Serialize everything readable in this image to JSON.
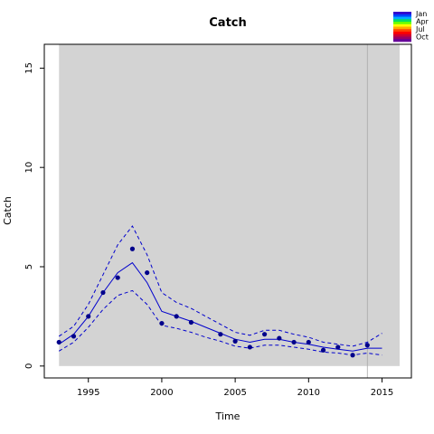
{
  "chart_data": {
    "type": "line",
    "title": "Catch",
    "xlabel": "Time",
    "ylabel": "Catch",
    "xlim": [
      1992,
      2017
    ],
    "ylim": [
      -0.6,
      16.2
    ],
    "xticks": [
      1995,
      2000,
      2005,
      2010,
      2015
    ],
    "yticks": [
      0,
      5,
      10,
      15
    ],
    "grid": false,
    "background_color": "#d3d3d3",
    "shaded_x_range": [
      1993,
      2016.2
    ],
    "vertical_line_x": 2014,
    "legend_position": "top-right",
    "legend": {
      "labels": [
        "Jan",
        "Apr",
        "Jul",
        "Oct"
      ],
      "colors": [
        "#3300cc",
        "#0044ff",
        "#00aaff",
        "#00dd66",
        "#66ff00",
        "#ffff00",
        "#ffaa00",
        "#ff4400",
        "#ff0000",
        "#cc0033",
        "#990066",
        "#660099"
      ]
    },
    "observed": {
      "color": "#00008b",
      "x": [
        1993,
        1994,
        1995,
        1996,
        1997,
        1998,
        1999,
        2000,
        2001,
        2002,
        2004,
        2005,
        2006,
        2007,
        2008,
        2009,
        2010,
        2011,
        2012,
        2013,
        2014
      ],
      "y": [
        1.2,
        1.5,
        2.5,
        3.7,
        4.45,
        5.9,
        4.7,
        2.15,
        2.5,
        2.2,
        1.6,
        1.25,
        0.95,
        1.6,
        1.4,
        1.2,
        1.2,
        0.8,
        0.95,
        0.55,
        1.05
      ]
    },
    "fit": {
      "color": "#0000cd",
      "x": [
        1993,
        1994,
        1995,
        1996,
        1997,
        1998,
        1999,
        2000,
        2001,
        2002,
        2003,
        2004,
        2005,
        2006,
        2007,
        2008,
        2009,
        2010,
        2011,
        2012,
        2013,
        2014,
        2015
      ],
      "mean": [
        1.1,
        1.6,
        2.5,
        3.7,
        4.7,
        5.2,
        4.2,
        2.75,
        2.5,
        2.25,
        1.95,
        1.65,
        1.35,
        1.2,
        1.35,
        1.35,
        1.2,
        1.1,
        0.95,
        0.85,
        0.75,
        0.9,
        0.9
      ],
      "upper": [
        1.5,
        2.0,
        3.1,
        4.6,
        6.1,
        7.05,
        5.6,
        3.7,
        3.2,
        2.9,
        2.5,
        2.1,
        1.7,
        1.55,
        1.8,
        1.8,
        1.6,
        1.45,
        1.2,
        1.1,
        1.0,
        1.2,
        1.65
      ],
      "lower": [
        0.75,
        1.2,
        1.95,
        2.85,
        3.55,
        3.8,
        3.1,
        2.05,
        1.9,
        1.7,
        1.45,
        1.25,
        1.0,
        0.9,
        1.05,
        1.05,
        0.95,
        0.85,
        0.7,
        0.65,
        0.55,
        0.65,
        0.55
      ]
    }
  }
}
